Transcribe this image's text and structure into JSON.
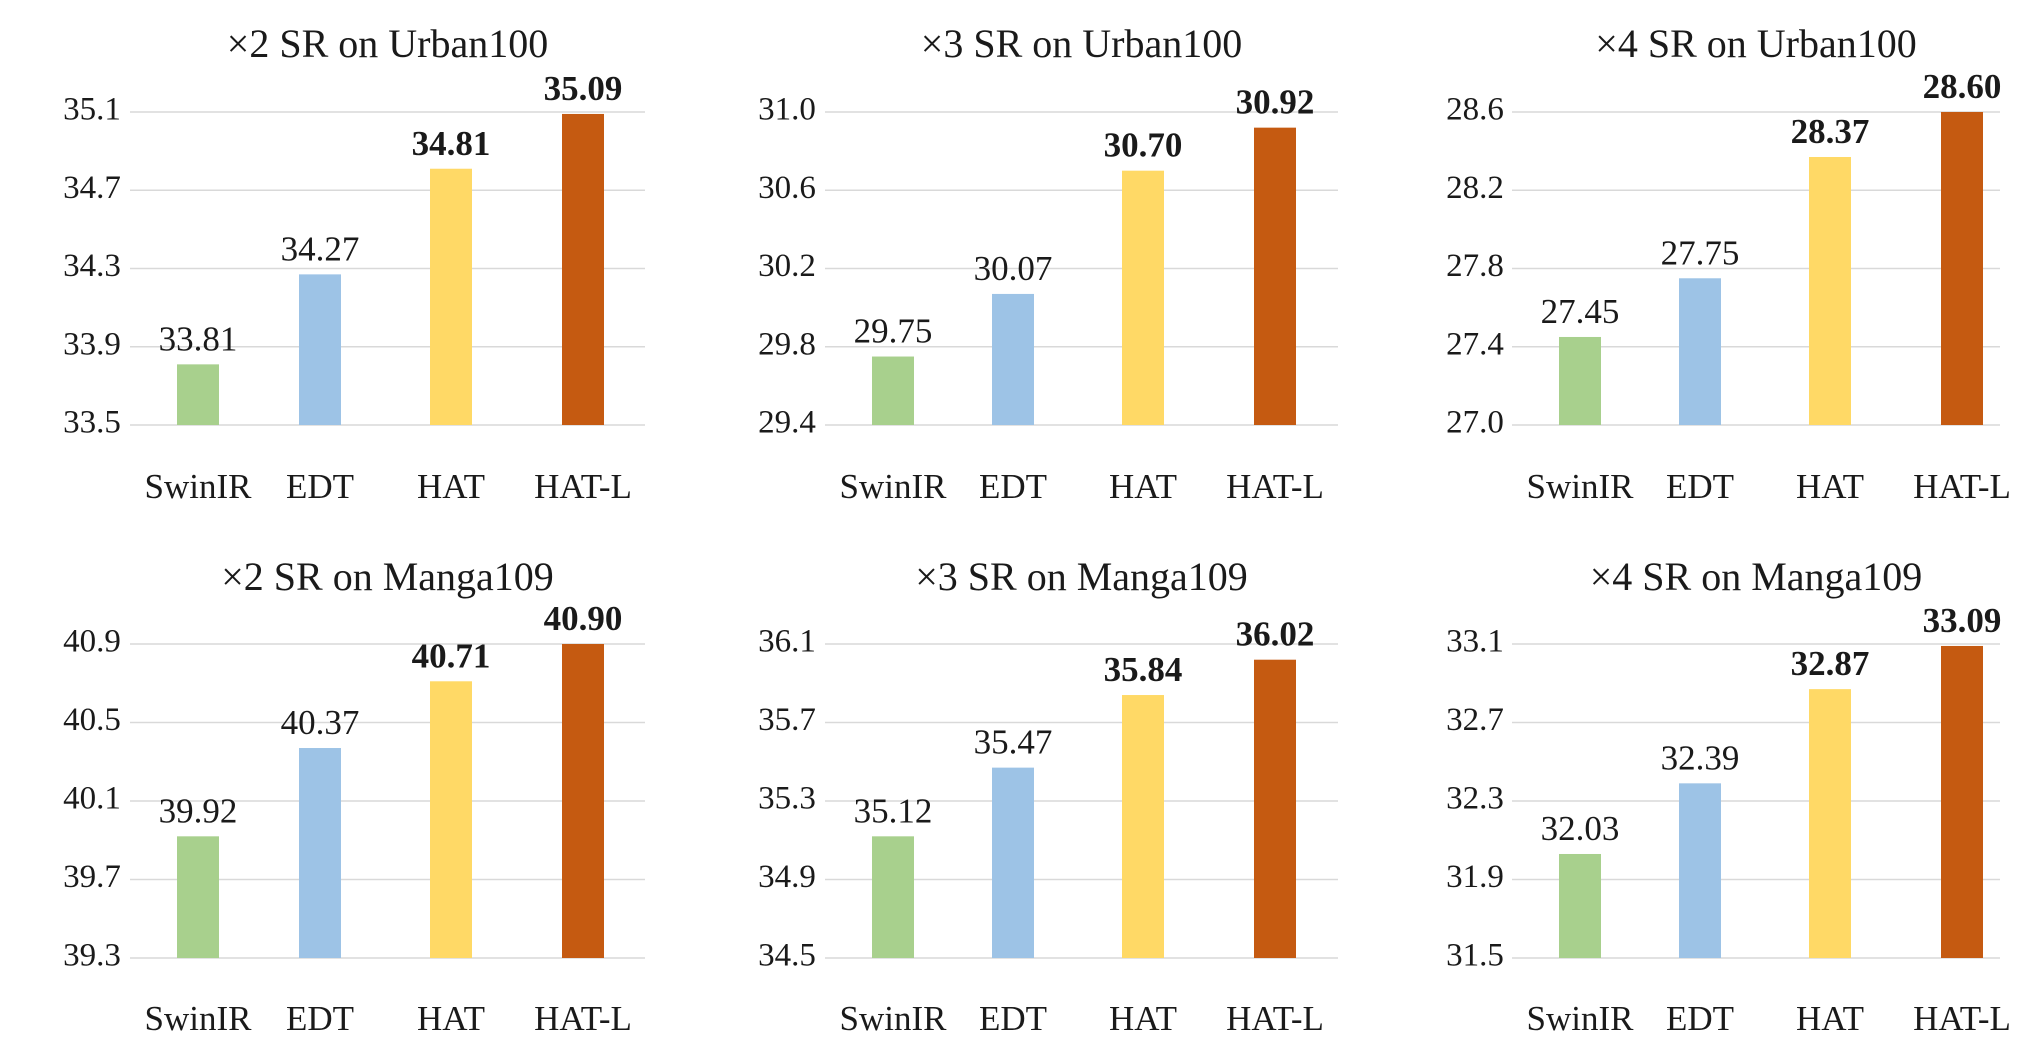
{
  "colors": {
    "SwinIR": "#a8d08d",
    "EDT": "#9dc3e6",
    "HAT": "#ffd966",
    "HAT-L": "#c55a11"
  },
  "grid": true,
  "chart_data": [
    {
      "type": "bar",
      "title": "×2 SR on Urban100",
      "categories": [
        "SwinIR",
        "EDT",
        "HAT",
        "HAT-L"
      ],
      "values": [
        33.81,
        34.27,
        34.81,
        35.09
      ],
      "value_labels": [
        "33.81",
        "34.27",
        "34.81",
        "35.09"
      ],
      "bold_labels": [
        false,
        false,
        true,
        true
      ],
      "ylim": [
        33.5,
        35.1
      ],
      "yticks": [
        "33.5",
        "33.9",
        "34.3",
        "34.7",
        "35.1"
      ]
    },
    {
      "type": "bar",
      "title": "×3 SR on Urban100",
      "categories": [
        "SwinIR",
        "EDT",
        "HAT",
        "HAT-L"
      ],
      "values": [
        29.75,
        30.07,
        30.7,
        30.92
      ],
      "value_labels": [
        "29.75",
        "30.07",
        "30.70",
        "30.92"
      ],
      "bold_labels": [
        false,
        false,
        true,
        true
      ],
      "ylim": [
        29.4,
        31.0
      ],
      "yticks": [
        "29.4",
        "29.8",
        "30.2",
        "30.6",
        "31.0"
      ]
    },
    {
      "type": "bar",
      "title": "×4 SR on Urban100",
      "categories": [
        "SwinIR",
        "EDT",
        "HAT",
        "HAT-L"
      ],
      "values": [
        27.45,
        27.75,
        28.37,
        28.6
      ],
      "value_labels": [
        "27.45",
        "27.75",
        "28.37",
        "28.60"
      ],
      "bold_labels": [
        false,
        false,
        true,
        true
      ],
      "ylim": [
        27.0,
        28.6
      ],
      "yticks": [
        "27.0",
        "27.4",
        "27.8",
        "28.2",
        "28.6"
      ]
    },
    {
      "type": "bar",
      "title": "×2 SR on Manga109",
      "categories": [
        "SwinIR",
        "EDT",
        "HAT",
        "HAT-L"
      ],
      "values": [
        39.92,
        40.37,
        40.71,
        40.9
      ],
      "value_labels": [
        "39.92",
        "40.37",
        "40.71",
        "40.90"
      ],
      "bold_labels": [
        false,
        false,
        true,
        true
      ],
      "ylim": [
        39.3,
        40.9
      ],
      "yticks": [
        "39.3",
        "39.7",
        "40.1",
        "40.5",
        "40.9"
      ]
    },
    {
      "type": "bar",
      "title": "×3 SR on Manga109",
      "categories": [
        "SwinIR",
        "EDT",
        "HAT",
        "HAT-L"
      ],
      "values": [
        35.12,
        35.47,
        35.84,
        36.02
      ],
      "value_labels": [
        "35.12",
        "35.47",
        "35.84",
        "36.02"
      ],
      "bold_labels": [
        false,
        false,
        true,
        true
      ],
      "ylim": [
        34.5,
        36.1
      ],
      "yticks": [
        "34.5",
        "34.9",
        "35.3",
        "35.7",
        "36.1"
      ]
    },
    {
      "type": "bar",
      "title": "×4 SR on Manga109",
      "categories": [
        "SwinIR",
        "EDT",
        "HAT",
        "HAT-L"
      ],
      "values": [
        32.03,
        32.39,
        32.87,
        33.09
      ],
      "value_labels": [
        "32.03",
        "32.39",
        "32.87",
        "33.09"
      ],
      "bold_labels": [
        false,
        false,
        true,
        true
      ],
      "ylim": [
        31.5,
        33.1
      ],
      "yticks": [
        "31.5",
        "31.9",
        "32.3",
        "32.7",
        "33.1"
      ]
    }
  ]
}
